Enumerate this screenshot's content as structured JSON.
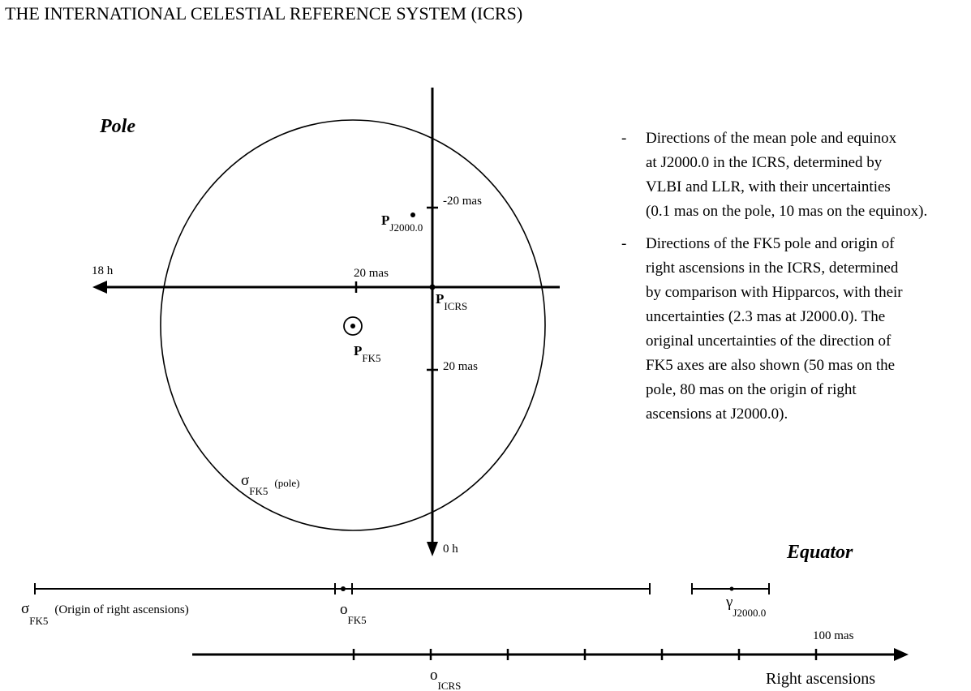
{
  "title": "THE INTERNATIONAL CELESTIAL REFERENCE SYSTEM (ICRS)",
  "labels": {
    "pole": "Pole",
    "equator": "Equator",
    "hour_18": "18 h",
    "hour_0": "0 h",
    "tick_top": "-20 mas",
    "tick_left": "20 mas",
    "tick_bottom": "20 mas",
    "p_j2000": "P",
    "p_j2000_sub": "J2000.0",
    "p_icrs": "P",
    "p_icrs_sub": "ICRS",
    "p_fk5": "P",
    "p_fk5_sub": "FK5",
    "sigma_pole": "σ",
    "sigma_pole_sub": "FK5",
    "sigma_pole_note": "(pole)",
    "sigma_origin": "σ",
    "sigma_origin_sub": "FK5",
    "sigma_origin_note": "(Origin of right ascensions)",
    "o_fk5": "o",
    "o_fk5_sub": "FK5",
    "gamma": "γ",
    "gamma_sub": "J2000.0",
    "scale_100": "100 mas",
    "o_icrs": "o",
    "o_icrs_sub": "ICRS",
    "right_ascensions": "Right ascensions"
  },
  "notes": [
    {
      "dash": "-",
      "lines": [
        "Directions of the mean pole and equinox",
        "at J2000.0 in the ICRS, determined by",
        "VLBI and LLR, with their uncertainties",
        "(0.1 mas on the pole, 10 mas on the equinox)."
      ]
    },
    {
      "dash": "-",
      "lines": [
        "Directions of the FK5 pole and origin of",
        "right ascensions in the ICRS, determined",
        "by comparison with Hipparcos, with their",
        "uncertainties (2.3 mas at J2000.0). The",
        "original uncertainties of the direction of",
        "FK5 axes are also shown (50 mas on the",
        "pole, 80 mas on the origin of right",
        "ascensions at J2000.0)."
      ]
    }
  ]
}
